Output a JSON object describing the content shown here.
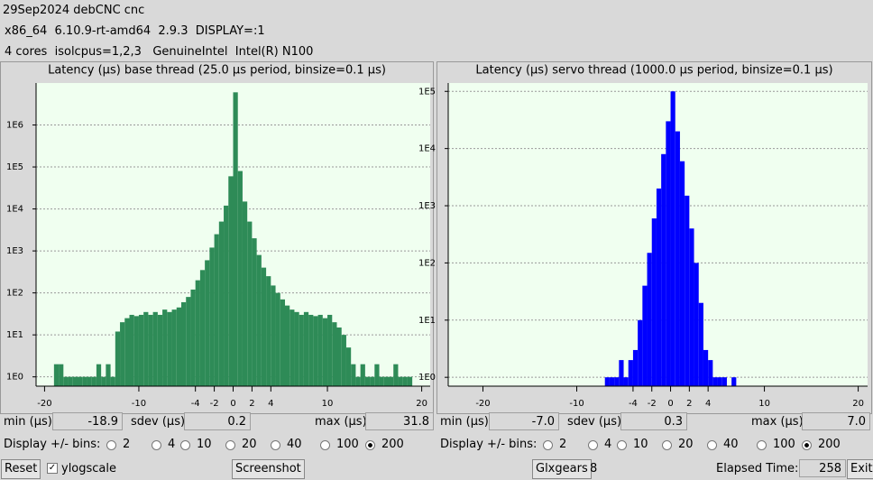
{
  "header": {
    "line1": "29Sep2024 debCNC cnc",
    "line2": "x86_64  6.10.9-rt-amd64  2.9.3  DISPLAY=:1",
    "line3": "4 cores  isolcpus=1,2,3   GenuineIntel  Intel(R) N100"
  },
  "chart_data": [
    {
      "type": "histogram",
      "title": "Latency (µs) base thread (25.0 µs period, binsize=0.1 µs)",
      "color": "#2e8b57",
      "log_y": true,
      "grid": true,
      "bins": [
        -20,
        -19.5,
        -19,
        -18.5,
        -18,
        -17.5,
        -17,
        -16.5,
        -16,
        -15.5,
        -15,
        -14.5,
        -14,
        -13.5,
        -13,
        -12.5,
        -12,
        -11.5,
        -11,
        -10.5,
        -10,
        -9.5,
        -9,
        -8.5,
        -8,
        -7.5,
        -7,
        -6.5,
        -6,
        -5.5,
        -5,
        -4.5,
        -4,
        -3.5,
        -3,
        -2.5,
        -2,
        -1.5,
        -1,
        -0.5,
        0,
        0.5,
        1,
        1.5,
        2,
        2.5,
        3,
        3.5,
        4,
        4.5,
        5,
        5.5,
        6,
        6.5,
        7,
        7.5,
        8,
        8.5,
        9,
        9.5,
        10,
        10.5,
        11,
        11.5,
        12,
        12.5,
        13,
        13.5,
        14,
        14.5,
        15,
        15.5,
        16,
        16.5,
        17,
        17.5,
        18,
        18.5,
        19,
        19.5,
        20
      ],
      "values": [
        0,
        0,
        2,
        2,
        1,
        1,
        1,
        1,
        1,
        1,
        1,
        2,
        1,
        2,
        1,
        12,
        20,
        25,
        30,
        28,
        30,
        35,
        30,
        35,
        30,
        40,
        35,
        40,
        45,
        60,
        80,
        120,
        200,
        350,
        600,
        1200,
        2500,
        5000,
        12000,
        60000,
        6000000,
        80000,
        15000,
        5000,
        2000,
        800,
        400,
        250,
        150,
        100,
        70,
        50,
        40,
        35,
        30,
        35,
        30,
        28,
        30,
        25,
        30,
        20,
        15,
        10,
        5,
        2,
        1,
        2,
        1,
        1,
        2,
        1,
        1,
        1,
        2,
        1,
        1,
        1,
        0,
        0
      ],
      "xlim": [
        -20.9,
        20.9
      ],
      "xticks": [
        -20,
        -10,
        -4,
        -2,
        0,
        2,
        4,
        10,
        20
      ],
      "ylim": [
        0.6,
        10000000
      ],
      "yticks": [
        {
          "value": 1,
          "label": "1E0"
        },
        {
          "value": 10,
          "label": "1E1"
        },
        {
          "value": 100,
          "label": "1E2"
        },
        {
          "value": 1000,
          "label": "1E3"
        },
        {
          "value": 10000,
          "label": "1E4"
        },
        {
          "value": 100000,
          "label": "1E5"
        },
        {
          "value": 1000000,
          "label": "1E6"
        }
      ]
    },
    {
      "type": "histogram",
      "title": "Latency (µs) servo thread (1000.0 µs period, binsize=0.1 µs)",
      "color": "#0000ff",
      "log_y": true,
      "grid": true,
      "bins": [
        -20,
        -19.5,
        -19,
        -18.5,
        -18,
        -17.5,
        -17,
        -16.5,
        -16,
        -15.5,
        -15,
        -14.5,
        -14,
        -13.5,
        -13,
        -12.5,
        -12,
        -11.5,
        -11,
        -10.5,
        -10,
        -9.5,
        -9,
        -8.5,
        -8,
        -7.5,
        -7,
        -6.5,
        -6,
        -5.5,
        -5,
        -4.5,
        -4,
        -3.5,
        -3,
        -2.5,
        -2,
        -1.5,
        -1,
        -0.5,
        0,
        0.5,
        1,
        1.5,
        2,
        2.5,
        3,
        3.5,
        4,
        4.5,
        5,
        5.5,
        6,
        6.5,
        7,
        7.5,
        8,
        8.5,
        9,
        9.5,
        10,
        10.5,
        11,
        11.5,
        12,
        12.5,
        13,
        13.5,
        14,
        14.5,
        15,
        15.5,
        16,
        16.5,
        17,
        17.5,
        18,
        18.5,
        19,
        19.5,
        20
      ],
      "values": [
        0,
        0,
        0,
        0,
        0,
        0,
        0,
        0,
        0,
        0,
        0,
        0,
        0,
        0,
        0,
        0,
        0,
        0,
        0,
        0,
        0,
        0,
        0,
        0,
        0,
        0,
        1,
        1,
        1,
        2,
        1,
        2,
        3,
        10,
        40,
        150,
        600,
        2000,
        8000,
        30000,
        100000,
        20000,
        6000,
        1500,
        400,
        100,
        20,
        3,
        2,
        1,
        1,
        1,
        0,
        1,
        0,
        0,
        0,
        0,
        0,
        0,
        0,
        0,
        0,
        0,
        0,
        0,
        0,
        0,
        0,
        0,
        0,
        0,
        0,
        0,
        0,
        0,
        0,
        0,
        0,
        0
      ],
      "xlim": [
        -23.7,
        21
      ],
      "xticks": [
        -20,
        -10,
        -4,
        -2,
        0,
        2,
        4,
        10,
        20
      ],
      "ylim": [
        0.7,
        140000
      ],
      "yticks": [
        {
          "value": 1,
          "label": "1E0"
        },
        {
          "value": 10,
          "label": "1E1"
        },
        {
          "value": 100,
          "label": "1E2"
        },
        {
          "value": 1000,
          "label": "1E3"
        },
        {
          "value": 10000,
          "label": "1E4"
        },
        {
          "value": 100000,
          "label": "1E5"
        }
      ]
    }
  ],
  "stats": [
    {
      "min_label": "min (µs)",
      "min": "-18.9",
      "sdev_label": "sdev (µs)",
      "sdev": "0.2",
      "max_label": "max (µs)",
      "max": "31.8"
    },
    {
      "min_label": "min (µs)",
      "min": "-7.0",
      "sdev_label": "sdev (µs)",
      "sdev": "0.3",
      "max_label": "max (µs)",
      "max": "7.0"
    }
  ],
  "display": {
    "label": "Display +/- bins:",
    "options": [
      2,
      4,
      10,
      20,
      40,
      100,
      200
    ],
    "selected": 6
  },
  "footer": {
    "reset": "Reset",
    "ylogscale": "ylogscale",
    "screenshot": "Screenshot",
    "glxgears": "Glxgears",
    "glx_count": "8",
    "elapsed_label": "Elapsed Time:",
    "elapsed": "258",
    "exit": "Exit"
  }
}
